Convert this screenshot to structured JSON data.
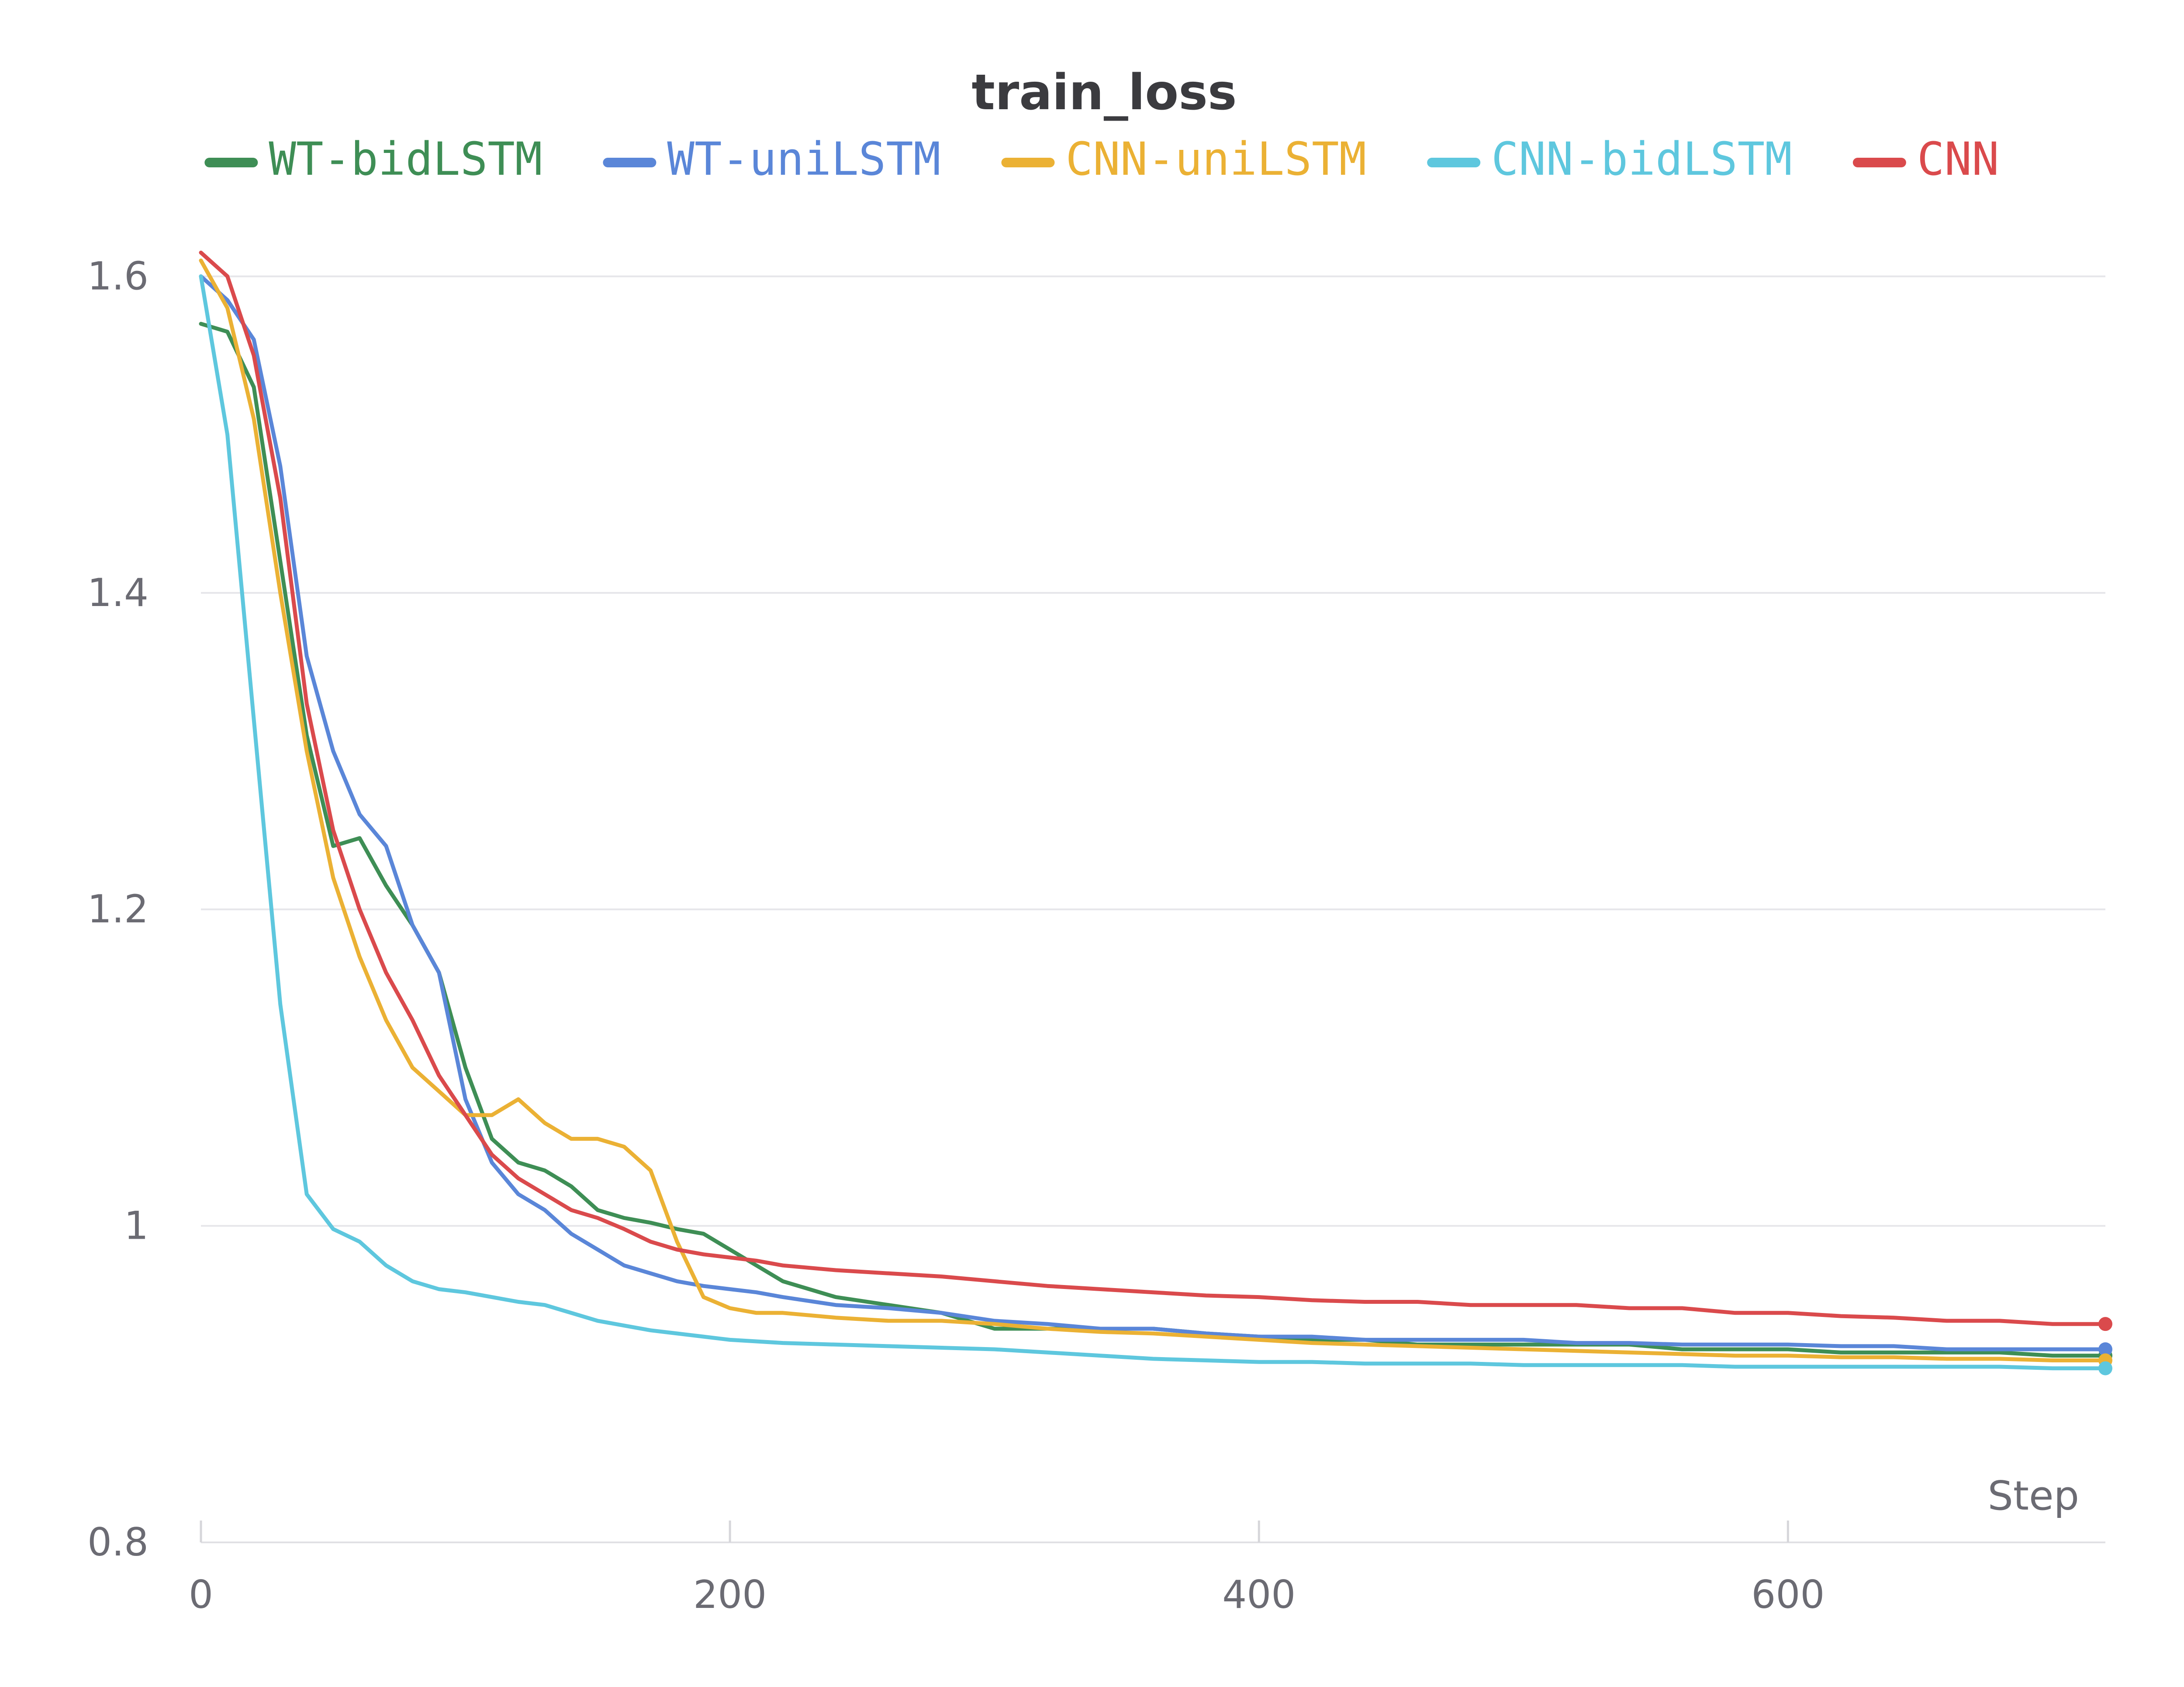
{
  "chart_data": {
    "type": "line",
    "title": "train_loss",
    "xlabel": "Step",
    "ylabel": "",
    "xlim": [
      0,
      720
    ],
    "ylim": [
      0.8,
      1.62
    ],
    "x_ticks": [
      0,
      200,
      400,
      600
    ],
    "x_tick_labels": [
      "0",
      "200",
      "400",
      "600"
    ],
    "y_ticks": [
      0.8,
      1.0,
      1.2,
      1.4,
      1.6
    ],
    "y_tick_labels": [
      "0.8",
      "1",
      "1.2",
      "1.4",
      "1.6"
    ],
    "grid": "horizontal",
    "legend_position": "top",
    "series": [
      {
        "name": "WT-bidLSTM",
        "color": "#3e8e55",
        "x": [
          0,
          10,
          20,
          30,
          40,
          50,
          60,
          70,
          80,
          90,
          100,
          110,
          120,
          130,
          140,
          150,
          160,
          170,
          180,
          190,
          200,
          210,
          220,
          240,
          260,
          280,
          300,
          320,
          340,
          360,
          380,
          400,
          420,
          440,
          460,
          480,
          500,
          520,
          540,
          560,
          580,
          600,
          620,
          640,
          660,
          680,
          700,
          720
        ],
        "y": [
          1.57,
          1.565,
          1.53,
          1.42,
          1.31,
          1.24,
          1.245,
          1.215,
          1.19,
          1.16,
          1.1,
          1.055,
          1.04,
          1.035,
          1.025,
          1.01,
          1.005,
          1.002,
          0.998,
          0.995,
          0.985,
          0.975,
          0.965,
          0.955,
          0.95,
          0.945,
          0.935,
          0.935,
          0.935,
          0.935,
          0.932,
          0.93,
          0.928,
          0.928,
          0.925,
          0.925,
          0.925,
          0.925,
          0.925,
          0.922,
          0.922,
          0.922,
          0.92,
          0.92,
          0.92,
          0.92,
          0.918,
          0.918
        ]
      },
      {
        "name": "WT-uniLSTM",
        "color": "#5a86d8",
        "x": [
          0,
          10,
          20,
          30,
          40,
          50,
          60,
          70,
          80,
          90,
          100,
          110,
          120,
          130,
          140,
          150,
          160,
          170,
          180,
          190,
          200,
          210,
          220,
          240,
          260,
          280,
          300,
          320,
          340,
          360,
          380,
          400,
          420,
          440,
          460,
          480,
          500,
          520,
          540,
          560,
          580,
          600,
          620,
          640,
          660,
          680,
          700,
          720
        ],
        "y": [
          1.6,
          1.585,
          1.56,
          1.48,
          1.36,
          1.3,
          1.26,
          1.24,
          1.19,
          1.16,
          1.08,
          1.04,
          1.02,
          1.01,
          0.995,
          0.985,
          0.975,
          0.97,
          0.965,
          0.962,
          0.96,
          0.958,
          0.955,
          0.95,
          0.948,
          0.945,
          0.94,
          0.938,
          0.935,
          0.935,
          0.932,
          0.93,
          0.93,
          0.928,
          0.928,
          0.928,
          0.928,
          0.926,
          0.926,
          0.925,
          0.925,
          0.925,
          0.924,
          0.924,
          0.922,
          0.922,
          0.922,
          0.922
        ]
      },
      {
        "name": "CNN-uniLSTM",
        "color": "#ebb134",
        "x": [
          0,
          10,
          20,
          30,
          40,
          50,
          60,
          70,
          80,
          90,
          100,
          110,
          120,
          130,
          140,
          150,
          160,
          170,
          180,
          190,
          200,
          210,
          220,
          240,
          260,
          280,
          300,
          320,
          340,
          360,
          380,
          400,
          420,
          440,
          460,
          480,
          500,
          520,
          540,
          560,
          580,
          600,
          620,
          640,
          660,
          680,
          700,
          720
        ],
        "y": [
          1.61,
          1.58,
          1.51,
          1.4,
          1.3,
          1.22,
          1.17,
          1.13,
          1.1,
          1.085,
          1.07,
          1.07,
          1.08,
          1.065,
          1.055,
          1.055,
          1.05,
          1.035,
          0.99,
          0.955,
          0.948,
          0.945,
          0.945,
          0.942,
          0.94,
          0.94,
          0.938,
          0.935,
          0.933,
          0.932,
          0.93,
          0.928,
          0.926,
          0.925,
          0.924,
          0.923,
          0.922,
          0.921,
          0.92,
          0.919,
          0.918,
          0.918,
          0.917,
          0.917,
          0.916,
          0.916,
          0.915,
          0.915
        ]
      },
      {
        "name": "CNN-bidLSTM",
        "color": "#5ec7de",
        "x": [
          0,
          10,
          20,
          30,
          40,
          50,
          60,
          70,
          80,
          90,
          100,
          110,
          120,
          130,
          140,
          150,
          160,
          170,
          180,
          190,
          200,
          210,
          220,
          240,
          260,
          280,
          300,
          320,
          340,
          360,
          380,
          400,
          420,
          440,
          460,
          480,
          500,
          520,
          540,
          560,
          580,
          600,
          620,
          640,
          660,
          680,
          700,
          720
        ],
        "y": [
          1.6,
          1.5,
          1.32,
          1.14,
          1.02,
          0.998,
          0.99,
          0.975,
          0.965,
          0.96,
          0.958,
          0.955,
          0.952,
          0.95,
          0.945,
          0.94,
          0.937,
          0.934,
          0.932,
          0.93,
          0.928,
          0.927,
          0.926,
          0.925,
          0.924,
          0.923,
          0.922,
          0.92,
          0.918,
          0.916,
          0.915,
          0.914,
          0.914,
          0.913,
          0.913,
          0.913,
          0.912,
          0.912,
          0.912,
          0.912,
          0.911,
          0.911,
          0.911,
          0.911,
          0.911,
          0.911,
          0.91,
          0.91
        ]
      },
      {
        "name": "CNN",
        "color": "#da4a4c",
        "x": [
          0,
          10,
          20,
          30,
          40,
          50,
          60,
          70,
          80,
          90,
          100,
          110,
          120,
          130,
          140,
          150,
          160,
          170,
          180,
          190,
          200,
          210,
          220,
          240,
          260,
          280,
          300,
          320,
          340,
          360,
          380,
          400,
          420,
          440,
          460,
          480,
          500,
          520,
          540,
          560,
          580,
          600,
          620,
          640,
          660,
          680,
          700,
          720
        ],
        "y": [
          1.615,
          1.6,
          1.55,
          1.46,
          1.33,
          1.25,
          1.2,
          1.16,
          1.13,
          1.095,
          1.07,
          1.045,
          1.03,
          1.02,
          1.01,
          1.005,
          0.998,
          0.99,
          0.985,
          0.982,
          0.98,
          0.978,
          0.975,
          0.972,
          0.97,
          0.968,
          0.965,
          0.962,
          0.96,
          0.958,
          0.956,
          0.955,
          0.953,
          0.952,
          0.952,
          0.95,
          0.95,
          0.95,
          0.948,
          0.948,
          0.945,
          0.945,
          0.943,
          0.942,
          0.94,
          0.94,
          0.938,
          0.938
        ]
      }
    ]
  }
}
